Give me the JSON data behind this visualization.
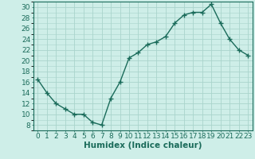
{
  "x": [
    0,
    1,
    2,
    3,
    4,
    5,
    6,
    7,
    8,
    9,
    10,
    11,
    12,
    13,
    14,
    15,
    16,
    17,
    18,
    19,
    20,
    21,
    22,
    23
  ],
  "y": [
    16.5,
    14,
    12,
    11,
    10,
    10,
    8.5,
    8,
    13,
    16,
    20.5,
    21.5,
    23,
    23.5,
    24.5,
    27,
    28.5,
    29,
    29,
    30.5,
    27,
    24,
    22,
    21
  ],
  "line_color": "#1a6b5a",
  "marker": "+",
  "bg_color": "#ceeee8",
  "grid_color": "#aad4cc",
  "xlabel": "Humidex (Indice chaleur)",
  "ylabel_ticks": [
    8,
    10,
    12,
    14,
    16,
    18,
    20,
    22,
    24,
    26,
    28,
    30
  ],
  "xlim": [
    -0.5,
    23.5
  ],
  "ylim": [
    7,
    31
  ],
  "xticks": [
    0,
    1,
    2,
    3,
    4,
    5,
    6,
    7,
    8,
    9,
    10,
    11,
    12,
    13,
    14,
    15,
    16,
    17,
    18,
    19,
    20,
    21,
    22,
    23
  ],
  "tick_fontsize": 6.5,
  "xlabel_fontsize": 7.5,
  "line_width": 1.0,
  "marker_size": 4
}
